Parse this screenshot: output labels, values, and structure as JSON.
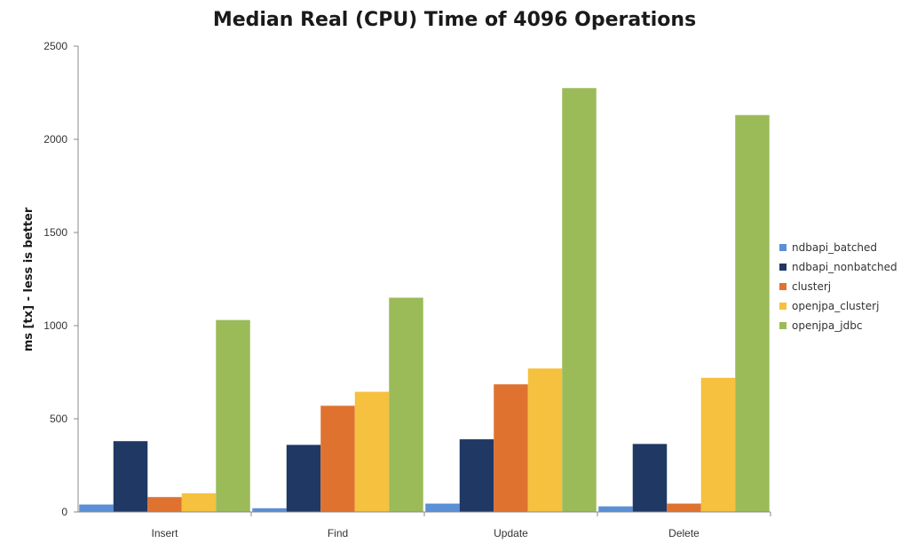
{
  "chart_data": {
    "type": "bar",
    "title": "Median Real (CPU) Time of 4096 Operations",
    "xlabel": "",
    "ylabel": "ms [tx] - less is better",
    "ylim": [
      0,
      2500
    ],
    "yticks": [
      0,
      500,
      1000,
      1500,
      2000,
      2500
    ],
    "grid": false,
    "legend_position": "right",
    "categories": [
      "Insert",
      "Find",
      "Update",
      "Delete"
    ],
    "series": [
      {
        "name": "ndbapi_batched",
        "color": "#5b8fd6",
        "values": [
          40,
          20,
          45,
          30
        ]
      },
      {
        "name": "ndbapi_nonbatched",
        "color": "#1f3864",
        "values": [
          380,
          360,
          390,
          365
        ]
      },
      {
        "name": "clusterj",
        "color": "#e07230",
        "values": [
          80,
          570,
          685,
          45
        ]
      },
      {
        "name": "openjpa_clusterj",
        "color": "#f5c13e",
        "values": [
          100,
          645,
          770,
          720
        ]
      },
      {
        "name": "openjpa_jdbc",
        "color": "#9bbb59",
        "values": [
          1030,
          1150,
          2275,
          2130
        ]
      }
    ]
  }
}
